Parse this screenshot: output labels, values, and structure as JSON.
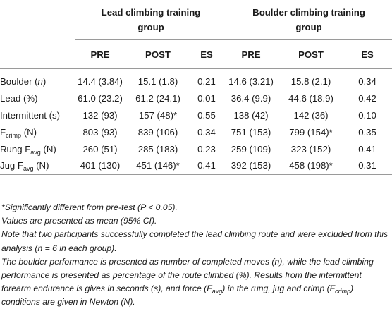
{
  "table": {
    "group_headers": [
      "Lead climbing training group",
      "Boulder climbing training group"
    ],
    "sub_headers": [
      "PRE",
      "POST",
      "ES",
      "PRE",
      "POST",
      "ES"
    ],
    "rows": [
      {
        "label_main": "Boulder (",
        "label_italic": "n",
        "label_tail": ")",
        "label_sub": "",
        "cells": [
          "14.4 (3.84)",
          "15.1 (1.8)",
          "0.21",
          "14.6 (3.21)",
          "15.8 (2.1)",
          "0.34"
        ]
      },
      {
        "label_main": "Lead (%)",
        "label_italic": "",
        "label_tail": "",
        "label_sub": "",
        "cells": [
          "61.0 (23.2)",
          "61.2 (24.1)",
          "0.01",
          "36.4 (9.9)",
          "44.6 (18.9)",
          "0.42"
        ]
      },
      {
        "label_main": "Intermittent (s)",
        "label_italic": "",
        "label_tail": "",
        "label_sub": "",
        "cells": [
          "132 (93)",
          "157 (48)*",
          "0.55",
          "138 (42)",
          "142 (36)",
          "0.10"
        ]
      },
      {
        "label_main": "F",
        "label_italic": "",
        "label_tail": " (N)",
        "label_sub": "crimp",
        "cells": [
          "803 (93)",
          "839 (106)",
          "0.34",
          "751 (153)",
          "799 (154)*",
          "0.35"
        ]
      },
      {
        "label_main": "Rung F",
        "label_italic": "",
        "label_tail": " (N)",
        "label_sub": "avg",
        "cells": [
          "260 (51)",
          "285 (183)",
          "0.23",
          "259 (109)",
          "323 (152)",
          "0.41"
        ]
      },
      {
        "label_main": "Jug F",
        "label_italic": "",
        "label_tail": " (N)",
        "label_sub": "avg",
        "cells": [
          "401 (130)",
          "451 (146)*",
          "0.41",
          "392 (153)",
          "458 (198)*",
          "0.31"
        ]
      }
    ]
  },
  "notes": {
    "n1": "*Significantly different from pre-test (P < 0.05).",
    "n2": "Values are presented as mean (95% CI).",
    "n3": "Note that two participants successfully completed the lead climbing route and were excluded from this analysis (n = 6 in each group).",
    "n4a": "The boulder performance is presented as number of completed moves (n), while the lead climbing performance is presented as percentage of the route climbed (%). Results from the intermittent forearm endurance is gives in seconds (s), and force (F",
    "n4_sub1": "avg",
    "n4b": ") in the rung, jug and crimp (F",
    "n4_sub2": "crimp",
    "n4c": ") conditions are given in Newton (N)."
  }
}
